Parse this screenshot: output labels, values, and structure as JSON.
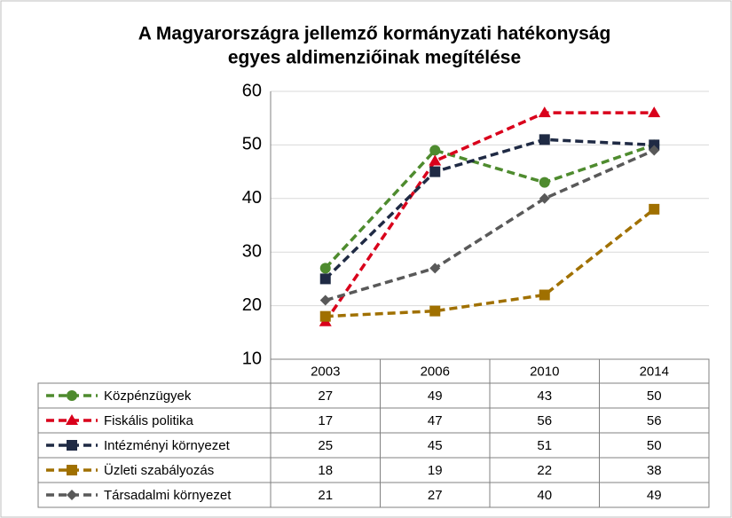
{
  "chart_data": {
    "type": "line",
    "title": [
      "A Magyarországra jellemző kormányzati hatékonyság",
      "egyes aldimenziőinak megítélése"
    ],
    "categories": [
      "2003",
      "2006",
      "2010",
      "2014"
    ],
    "ylim": [
      10,
      60
    ],
    "yticks": [
      10,
      20,
      30,
      40,
      50,
      60
    ],
    "grid": true,
    "series": [
      {
        "name": "Közpénzügyek",
        "color": "#4e8b2e",
        "marker": "circle",
        "values": [
          27,
          49,
          43,
          50
        ]
      },
      {
        "name": "Fiskális politika",
        "color": "#d9001b",
        "marker": "triangle",
        "values": [
          17,
          47,
          56,
          56
        ]
      },
      {
        "name": "Intézményi környezet",
        "color": "#1f2a44",
        "marker": "square",
        "values": [
          25,
          45,
          51,
          50
        ]
      },
      {
        "name": "Üzleti szabályozás",
        "color": "#a07000",
        "marker": "square",
        "values": [
          18,
          19,
          22,
          38
        ]
      },
      {
        "name": "Társadalmi környezet",
        "color": "#595959",
        "marker": "diamond",
        "values": [
          21,
          27,
          40,
          49
        ]
      }
    ]
  }
}
